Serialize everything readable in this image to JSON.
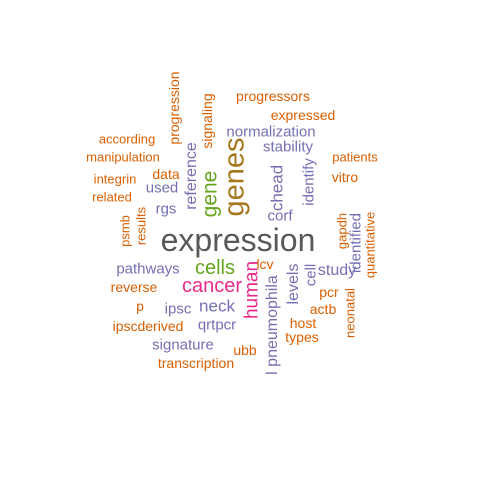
{
  "words": [
    {
      "text": "expression",
      "color": "gray",
      "vertical": false
    },
    {
      "text": "genes",
      "color": "brown",
      "vertical": true
    },
    {
      "text": "gene",
      "color": "green",
      "vertical": true
    },
    {
      "text": "cells",
      "color": "green",
      "vertical": false
    },
    {
      "text": "cancer",
      "color": "pink",
      "vertical": false
    },
    {
      "text": "human",
      "color": "pink",
      "vertical": true
    },
    {
      "text": "reference",
      "color": "purple",
      "vertical": true
    },
    {
      "text": "chead",
      "color": "purple",
      "vertical": true
    },
    {
      "text": "normalization",
      "color": "purple",
      "vertical": false
    },
    {
      "text": "stability",
      "color": "purple",
      "vertical": false
    },
    {
      "text": "corf",
      "color": "purple",
      "vertical": false
    },
    {
      "text": "identify",
      "color": "purple",
      "vertical": true
    },
    {
      "text": "used",
      "color": "purple",
      "vertical": false
    },
    {
      "text": "rgs",
      "color": "purple",
      "vertical": false
    },
    {
      "text": "pathways",
      "color": "purple",
      "vertical": false
    },
    {
      "text": "ipsc",
      "color": "purple",
      "vertical": false
    },
    {
      "text": "neck",
      "color": "purple",
      "vertical": false
    },
    {
      "text": "qrtpcr",
      "color": "purple",
      "vertical": false
    },
    {
      "text": "signature",
      "color": "purple",
      "vertical": false
    },
    {
      "text": "levels",
      "color": "purple",
      "vertical": true
    },
    {
      "text": "cell",
      "color": "purple",
      "vertical": true
    },
    {
      "text": "study",
      "color": "purple",
      "vertical": false
    },
    {
      "text": "identified",
      "color": "purple",
      "vertical": true
    },
    {
      "text": "l pneumophila",
      "color": "purple",
      "vertical": true
    },
    {
      "text": "progression",
      "color": "orange",
      "vertical": true
    },
    {
      "text": "signaling",
      "color": "orange",
      "vertical": true
    },
    {
      "text": "progressors",
      "color": "orange",
      "vertical": false
    },
    {
      "text": "expressed",
      "color": "orange",
      "vertical": false
    },
    {
      "text": "according",
      "color": "orange",
      "vertical": false
    },
    {
      "text": "manipulation",
      "color": "orange",
      "vertical": false
    },
    {
      "text": "patients",
      "color": "orange",
      "vertical": false
    },
    {
      "text": "integrin",
      "color": "orange",
      "vertical": false
    },
    {
      "text": "data",
      "color": "orange",
      "vertical": false
    },
    {
      "text": "vitro",
      "color": "orange",
      "vertical": false
    },
    {
      "text": "related",
      "color": "orange",
      "vertical": false
    },
    {
      "text": "psmb",
      "color": "orange",
      "vertical": true
    },
    {
      "text": "results",
      "color": "orange",
      "vertical": true
    },
    {
      "text": "gapdh",
      "color": "orange",
      "vertical": true
    },
    {
      "text": "quantitative",
      "color": "orange",
      "vertical": true
    },
    {
      "text": "lcv",
      "color": "orange",
      "vertical": false
    },
    {
      "text": "reverse",
      "color": "orange",
      "vertical": false
    },
    {
      "text": "p",
      "color": "orange",
      "vertical": false
    },
    {
      "text": "pcr",
      "color": "orange",
      "vertical": false
    },
    {
      "text": "neonatal",
      "color": "orange",
      "vertical": true
    },
    {
      "text": "actb",
      "color": "orange",
      "vertical": false
    },
    {
      "text": "ipscderived",
      "color": "orange",
      "vertical": false
    },
    {
      "text": "host",
      "color": "orange",
      "vertical": false
    },
    {
      "text": "types",
      "color": "orange",
      "vertical": false
    },
    {
      "text": "ubb",
      "color": "orange",
      "vertical": false
    },
    {
      "text": "transcription",
      "color": "orange",
      "vertical": false
    }
  ]
}
